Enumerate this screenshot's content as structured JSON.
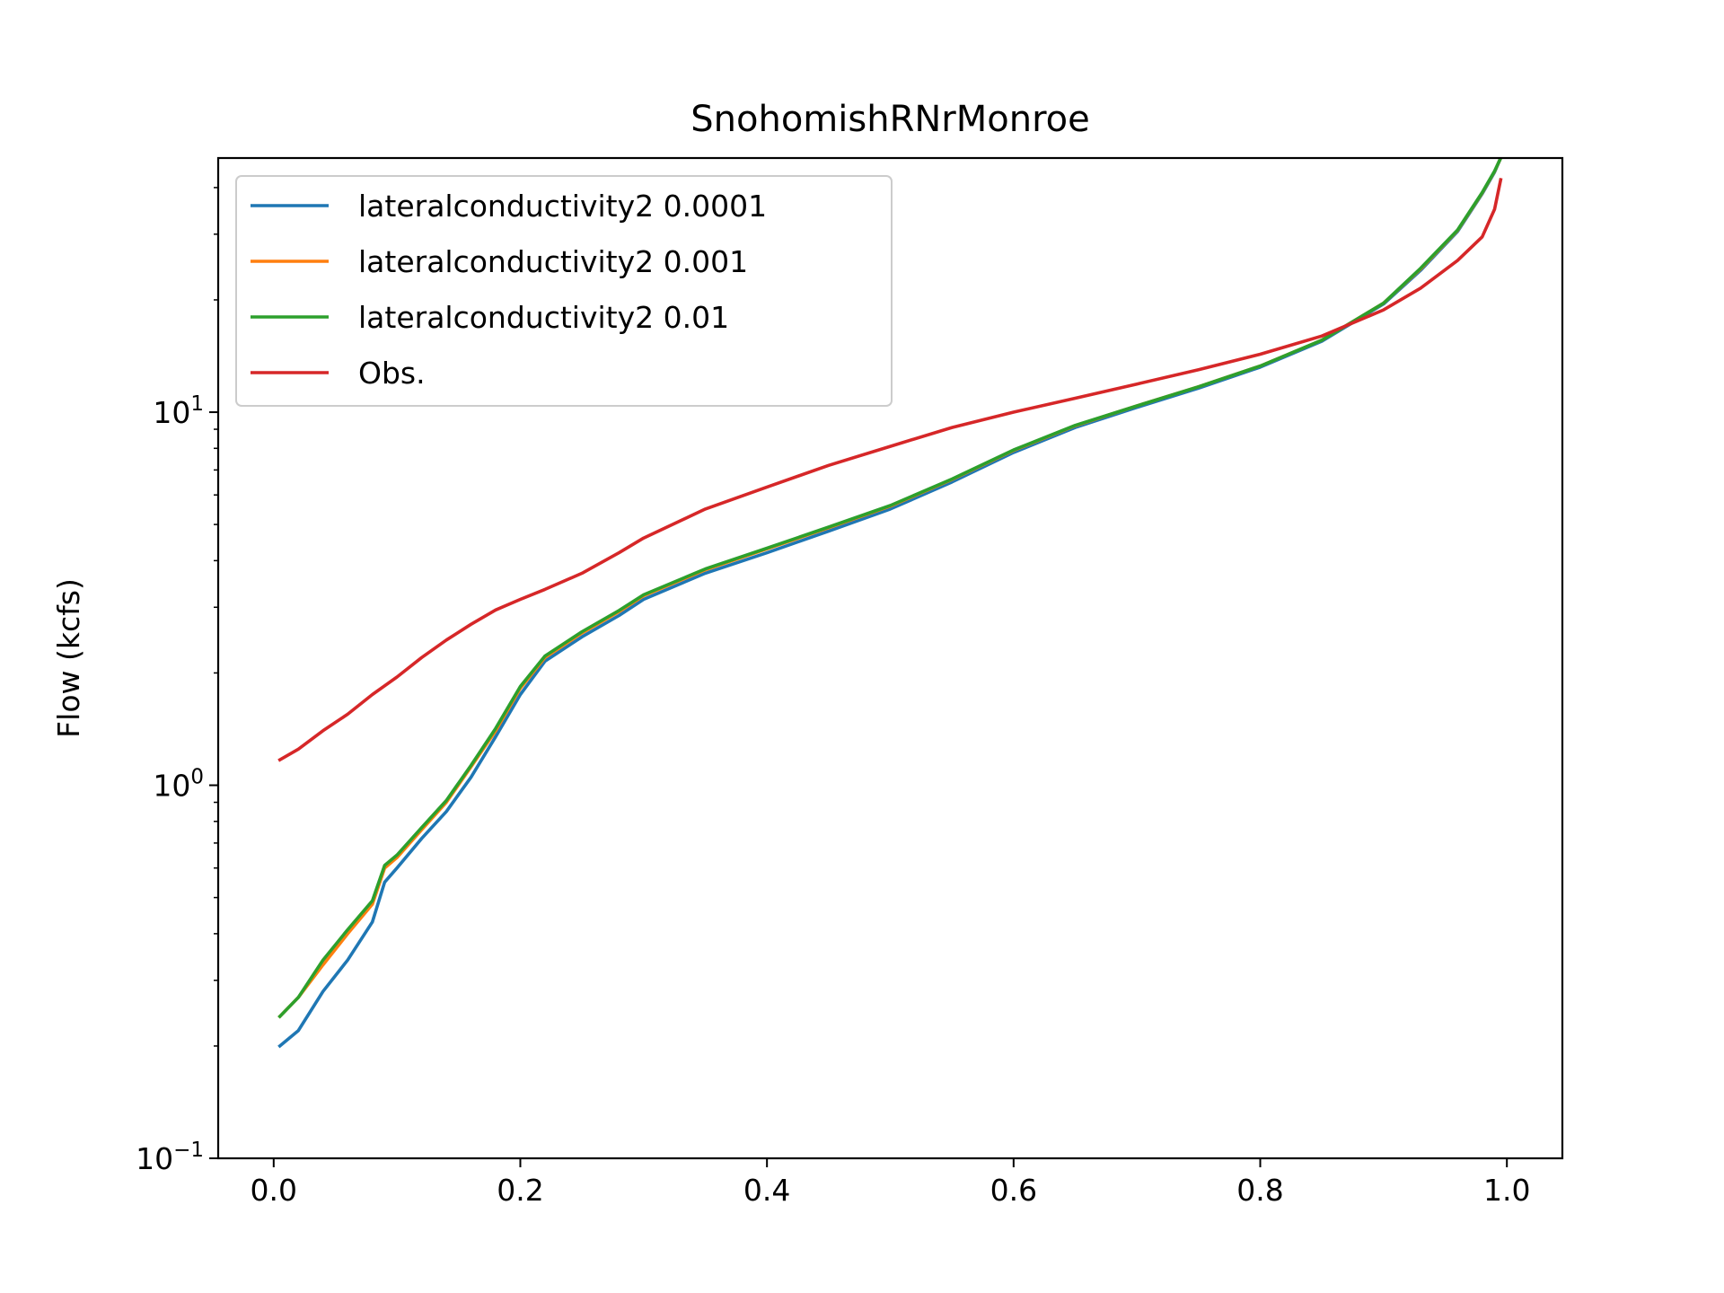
{
  "chart_data": {
    "type": "line",
    "title": "SnohomishRNrMonroe",
    "xlabel": "",
    "ylabel": "Flow (kcfs)",
    "y_scale": "log",
    "xlim": [
      -0.045,
      1.045
    ],
    "ylim": [
      0.1,
      48
    ],
    "x_ticks": [
      0.0,
      0.2,
      0.4,
      0.6,
      0.8,
      1.0
    ],
    "x_tick_labels": [
      "0.0",
      "0.2",
      "0.4",
      "0.6",
      "0.8",
      "1.0"
    ],
    "y_ticks": [
      {
        "value": 0.1,
        "base": "10",
        "exp": "−1"
      },
      {
        "value": 1,
        "base": "10",
        "exp": "0"
      },
      {
        "value": 10,
        "base": "10",
        "exp": "1"
      }
    ],
    "grid": false,
    "legend_position": "upper-left",
    "series": [
      {
        "name": "lateralconductivity2 0.0001",
        "color": "#1f77b4",
        "points": [
          [
            0.005,
            0.2
          ],
          [
            0.02,
            0.22
          ],
          [
            0.04,
            0.28
          ],
          [
            0.06,
            0.34
          ],
          [
            0.08,
            0.43
          ],
          [
            0.09,
            0.55
          ],
          [
            0.1,
            0.6
          ],
          [
            0.12,
            0.72
          ],
          [
            0.14,
            0.85
          ],
          [
            0.16,
            1.05
          ],
          [
            0.18,
            1.35
          ],
          [
            0.2,
            1.75
          ],
          [
            0.22,
            2.15
          ],
          [
            0.25,
            2.5
          ],
          [
            0.28,
            2.85
          ],
          [
            0.3,
            3.15
          ],
          [
            0.35,
            3.7
          ],
          [
            0.4,
            4.2
          ],
          [
            0.45,
            4.8
          ],
          [
            0.5,
            5.5
          ],
          [
            0.55,
            6.5
          ],
          [
            0.6,
            7.8
          ],
          [
            0.65,
            9.1
          ],
          [
            0.7,
            10.3
          ],
          [
            0.75,
            11.6
          ],
          [
            0.8,
            13.2
          ],
          [
            0.85,
            15.5
          ],
          [
            0.9,
            19.5
          ],
          [
            0.93,
            24.0
          ],
          [
            0.96,
            30.5
          ],
          [
            0.98,
            38.5
          ],
          [
            0.99,
            44.0
          ],
          [
            0.995,
            48.0
          ]
        ]
      },
      {
        "name": "lateralconductivity2 0.001",
        "color": "#ff7f0e",
        "points": [
          [
            0.005,
            0.24
          ],
          [
            0.02,
            0.27
          ],
          [
            0.04,
            0.33
          ],
          [
            0.06,
            0.4
          ],
          [
            0.08,
            0.48
          ],
          [
            0.09,
            0.6
          ],
          [
            0.1,
            0.64
          ],
          [
            0.12,
            0.76
          ],
          [
            0.14,
            0.9
          ],
          [
            0.16,
            1.12
          ],
          [
            0.18,
            1.4
          ],
          [
            0.2,
            1.82
          ],
          [
            0.22,
            2.2
          ],
          [
            0.25,
            2.56
          ],
          [
            0.28,
            2.92
          ],
          [
            0.3,
            3.22
          ],
          [
            0.35,
            3.78
          ],
          [
            0.4,
            4.3
          ],
          [
            0.45,
            4.9
          ],
          [
            0.5,
            5.6
          ],
          [
            0.55,
            6.6
          ],
          [
            0.6,
            7.9
          ],
          [
            0.65,
            9.2
          ],
          [
            0.7,
            10.4
          ],
          [
            0.75,
            11.7
          ],
          [
            0.8,
            13.3
          ],
          [
            0.85,
            15.6
          ],
          [
            0.9,
            19.6
          ],
          [
            0.93,
            24.2
          ],
          [
            0.96,
            30.7
          ],
          [
            0.98,
            38.7
          ],
          [
            0.99,
            44.2
          ],
          [
            0.995,
            48.0
          ]
        ]
      },
      {
        "name": "lateralconductivity2 0.01",
        "color": "#2ca02c",
        "points": [
          [
            0.005,
            0.24
          ],
          [
            0.02,
            0.27
          ],
          [
            0.04,
            0.34
          ],
          [
            0.06,
            0.41
          ],
          [
            0.08,
            0.49
          ],
          [
            0.09,
            0.61
          ],
          [
            0.1,
            0.65
          ],
          [
            0.12,
            0.77
          ],
          [
            0.14,
            0.91
          ],
          [
            0.16,
            1.13
          ],
          [
            0.18,
            1.42
          ],
          [
            0.2,
            1.84
          ],
          [
            0.22,
            2.22
          ],
          [
            0.25,
            2.58
          ],
          [
            0.28,
            2.94
          ],
          [
            0.3,
            3.24
          ],
          [
            0.35,
            3.8
          ],
          [
            0.4,
            4.32
          ],
          [
            0.45,
            4.92
          ],
          [
            0.5,
            5.62
          ],
          [
            0.55,
            6.62
          ],
          [
            0.6,
            7.92
          ],
          [
            0.65,
            9.22
          ],
          [
            0.7,
            10.4
          ],
          [
            0.75,
            11.7
          ],
          [
            0.8,
            13.3
          ],
          [
            0.85,
            15.6
          ],
          [
            0.9,
            19.6
          ],
          [
            0.93,
            24.3
          ],
          [
            0.96,
            30.8
          ],
          [
            0.98,
            38.8
          ],
          [
            0.99,
            44.3
          ],
          [
            0.995,
            48.0
          ]
        ]
      },
      {
        "name": "Obs.",
        "color": "#d62728",
        "points": [
          [
            0.005,
            1.17
          ],
          [
            0.02,
            1.25
          ],
          [
            0.04,
            1.4
          ],
          [
            0.06,
            1.55
          ],
          [
            0.08,
            1.75
          ],
          [
            0.1,
            1.95
          ],
          [
            0.12,
            2.2
          ],
          [
            0.14,
            2.45
          ],
          [
            0.16,
            2.7
          ],
          [
            0.18,
            2.95
          ],
          [
            0.2,
            3.15
          ],
          [
            0.22,
            3.35
          ],
          [
            0.25,
            3.7
          ],
          [
            0.28,
            4.2
          ],
          [
            0.3,
            4.6
          ],
          [
            0.35,
            5.5
          ],
          [
            0.4,
            6.3
          ],
          [
            0.45,
            7.2
          ],
          [
            0.5,
            8.1
          ],
          [
            0.55,
            9.1
          ],
          [
            0.6,
            10.0
          ],
          [
            0.65,
            10.9
          ],
          [
            0.7,
            11.9
          ],
          [
            0.75,
            13.0
          ],
          [
            0.8,
            14.3
          ],
          [
            0.85,
            16.0
          ],
          [
            0.9,
            18.8
          ],
          [
            0.93,
            21.5
          ],
          [
            0.96,
            25.5
          ],
          [
            0.98,
            29.5
          ],
          [
            0.99,
            35.0
          ],
          [
            0.995,
            42.0
          ]
        ]
      }
    ]
  }
}
